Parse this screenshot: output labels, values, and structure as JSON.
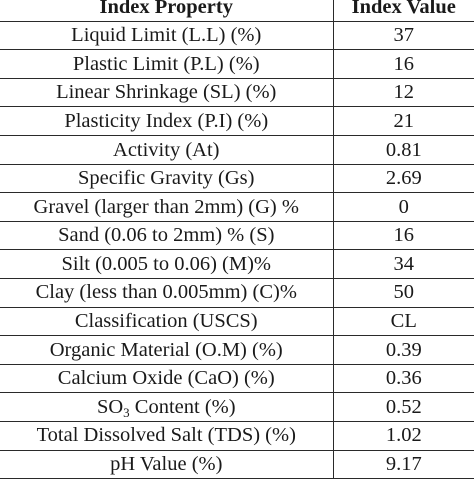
{
  "table": {
    "header": {
      "property": "Index Property",
      "value": "Index Value"
    },
    "rows": [
      {
        "property": "Liquid Limit (L.L) (%)",
        "value": "37"
      },
      {
        "property": "Plastic Limit (P.L) (%)",
        "value": "16"
      },
      {
        "property": "Linear Shrinkage (SL) (%)",
        "value": "12"
      },
      {
        "property": "Plasticity Index (P.I) (%)",
        "value": "21"
      },
      {
        "property": "Activity (At)",
        "value": "0.81"
      },
      {
        "property": "Specific Gravity (Gs)",
        "value": "2.69"
      },
      {
        "property": "Gravel (larger than 2mm) (G) %",
        "value": "0"
      },
      {
        "property": "Sand (0.06 to 2mm) % (S)",
        "value": "16"
      },
      {
        "property": "Silt (0.005 to 0.06) (M)%",
        "value": "34"
      },
      {
        "property": "Clay (less than 0.005mm) (C)%",
        "value": "50"
      },
      {
        "property": "Classification (USCS)",
        "value": "CL"
      },
      {
        "property": "Organic Material (O.M) (%)",
        "value": "0.39"
      },
      {
        "property": "Calcium Oxide (CaO) (%)",
        "value": "0.36"
      },
      {
        "property_prefix": "SO",
        "property_sub": "3",
        "property_suffix": " Content (%)",
        "value": "0.52"
      },
      {
        "property": "Total Dissolved Salt (TDS) (%)",
        "value": "1.02"
      },
      {
        "property": "pH Value (%)",
        "value": "9.17"
      }
    ]
  }
}
